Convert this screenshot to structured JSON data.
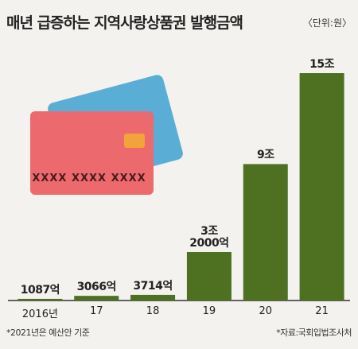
{
  "chart_data": {
    "type": "bar",
    "title": "매년 급증하는 지역사랑상품권 발행금액",
    "unit": "〈단위:원〉",
    "categories": [
      "2016년",
      "17",
      "18",
      "19",
      "20",
      "21"
    ],
    "values": [
      1087,
      3066,
      3714,
      32000,
      90000,
      150000
    ],
    "value_labels": [
      "1087억",
      "3066억",
      "3714억",
      "3조\n2000억",
      "9조",
      "15조"
    ],
    "color": "#4d7021",
    "card_text": "XXXX XXXX XXXX",
    "footnotes": [
      "*2021년은 예산안 기준",
      "*자료:국회입법조사처"
    ]
  }
}
